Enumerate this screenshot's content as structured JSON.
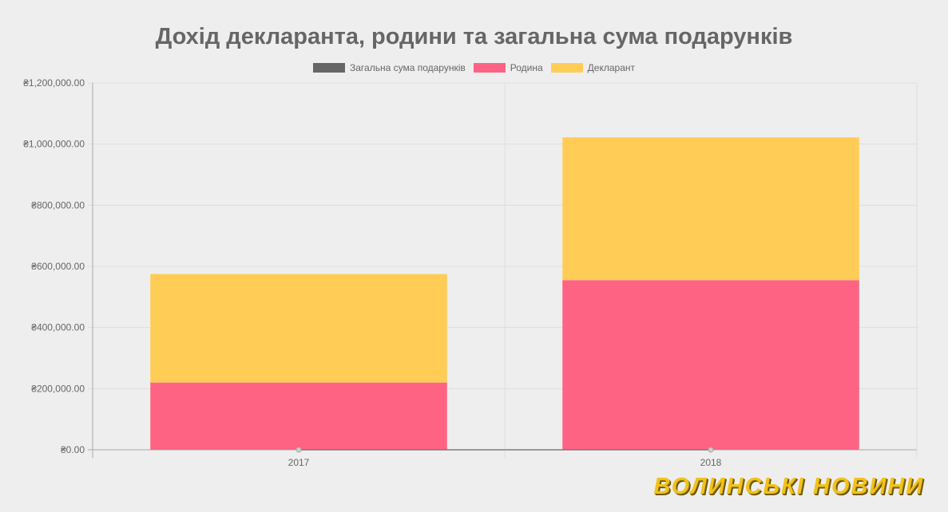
{
  "chart_data": {
    "type": "bar",
    "stacked": true,
    "title": "Дохід декларанта, родини та загальна сума подарунків",
    "categories": [
      "2017",
      "2018"
    ],
    "series": [
      {
        "name": "Загальна сума подарунків",
        "color": "#666666",
        "values": [
          0,
          0
        ],
        "render": "line"
      },
      {
        "name": "Родина",
        "color": "#ff6384",
        "values": [
          220000,
          555000
        ]
      },
      {
        "name": "Декларант",
        "color": "#ffcd56",
        "values": [
          355000,
          467000
        ]
      }
    ],
    "ylim": [
      0,
      1200000
    ],
    "yticks": [
      "₴0.00",
      "₴200,000.00",
      "₴400,000.00",
      "₴600,000.00",
      "₴800,000.00",
      "₴1,000,000.00",
      "₴1,200,000.00"
    ],
    "ytick_values": [
      0,
      200000,
      400000,
      600000,
      800000,
      1000000,
      1200000
    ],
    "grid": true,
    "legend_position": "top"
  },
  "watermark": "ВОЛИНСЬКІ НОВИНИ"
}
